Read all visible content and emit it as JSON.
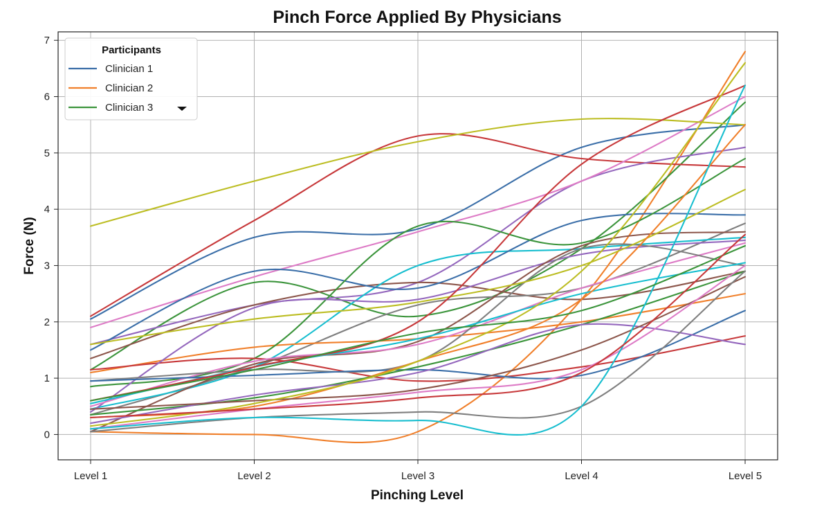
{
  "chart_data": {
    "type": "line",
    "title": "Pinch Force Applied By Physicians",
    "xlabel": "Pinching Level",
    "ylabel": "Force (N)",
    "categories": [
      "Level 1",
      "Level 2",
      "Level 3",
      "Level 4",
      "Level 5"
    ],
    "y_ticks": [
      "0",
      "1",
      "2",
      "3",
      "4",
      "5",
      "6",
      "7"
    ],
    "ylim": [
      -0.45,
      7.15
    ],
    "grid": true,
    "legend": {
      "title": "Participants",
      "placement": "top-left",
      "entries": [
        "Clinician 1",
        "Clinician 2",
        "Clinician 3"
      ],
      "collapsed": true
    },
    "series": [
      {
        "name": "Clinician 1",
        "color": "#3a6ea8",
        "values": [
          2.05,
          3.5,
          3.65,
          5.1,
          5.5
        ]
      },
      {
        "name": "Clinician 2",
        "color": "#f07f2a",
        "values": [
          0.05,
          0.0,
          0.05,
          2.4,
          6.8
        ]
      },
      {
        "name": "Clinician 3",
        "color": "#3b943b",
        "values": [
          1.15,
          2.7,
          2.1,
          3.3,
          5.9
        ]
      },
      {
        "color": "#c7383a",
        "values": [
          2.1,
          3.8,
          5.3,
          4.9,
          4.75
        ]
      },
      {
        "color": "#9467bd",
        "values": [
          1.6,
          2.3,
          2.7,
          4.5,
          5.1
        ]
      },
      {
        "color": "#8c564b",
        "values": [
          1.35,
          2.3,
          2.7,
          2.4,
          2.9
        ]
      },
      {
        "color": "#dd7bc6",
        "values": [
          1.9,
          2.8,
          3.6,
          4.5,
          6.0
        ]
      },
      {
        "color": "#7f7f7f",
        "values": [
          0.35,
          1.2,
          2.3,
          2.6,
          3.75
        ]
      },
      {
        "color": "#bcbd22",
        "values": [
          3.7,
          4.5,
          5.2,
          5.6,
          5.5
        ]
      },
      {
        "color": "#17becf",
        "values": [
          0.45,
          1.2,
          3.0,
          3.3,
          3.5
        ]
      },
      {
        "color": "#3a6ea8",
        "values": [
          1.5,
          2.9,
          2.6,
          3.8,
          3.9
        ]
      },
      {
        "color": "#f07f2a",
        "values": [
          1.1,
          1.55,
          1.7,
          2.0,
          2.5
        ]
      },
      {
        "color": "#3b943b",
        "values": [
          0.85,
          1.35,
          3.7,
          3.4,
          4.9
        ]
      },
      {
        "color": "#c7383a",
        "values": [
          1.15,
          1.35,
          0.95,
          1.2,
          1.75
        ]
      },
      {
        "color": "#9467bd",
        "values": [
          0.4,
          2.25,
          2.4,
          3.2,
          3.45
        ]
      },
      {
        "color": "#8c564b",
        "values": [
          0.05,
          1.25,
          1.65,
          3.35,
          3.6
        ]
      },
      {
        "color": "#dd7bc6",
        "values": [
          0.5,
          1.3,
          1.6,
          2.6,
          3.4
        ]
      },
      {
        "color": "#7f7f7f",
        "values": [
          0.95,
          1.15,
          1.3,
          3.3,
          3.0
        ]
      },
      {
        "color": "#bcbd22",
        "values": [
          1.6,
          2.05,
          2.35,
          3.0,
          4.35
        ]
      },
      {
        "color": "#17becf",
        "values": [
          0.55,
          1.2,
          1.7,
          2.5,
          3.05
        ]
      },
      {
        "color": "#3a6ea8",
        "values": [
          0.95,
          1.05,
          1.15,
          1.05,
          2.2
        ]
      },
      {
        "color": "#f07f2a",
        "values": [
          0.3,
          0.5,
          1.3,
          2.4,
          5.5
        ]
      },
      {
        "color": "#3b943b",
        "values": [
          0.35,
          0.65,
          1.2,
          1.95,
          2.9
        ]
      },
      {
        "color": "#c7383a",
        "values": [
          0.6,
          1.2,
          2.0,
          4.8,
          6.2
        ]
      },
      {
        "color": "#9467bd",
        "values": [
          0.2,
          0.7,
          1.1,
          1.95,
          1.6
        ]
      },
      {
        "color": "#8c564b",
        "values": [
          0.45,
          0.6,
          0.8,
          1.5,
          2.8
        ]
      },
      {
        "color": "#dd7bc6",
        "values": [
          0.1,
          0.45,
          0.75,
          1.15,
          3.0
        ]
      },
      {
        "color": "#7f7f7f",
        "values": [
          0.05,
          0.3,
          0.4,
          0.5,
          2.9
        ]
      },
      {
        "color": "#bcbd22",
        "values": [
          0.15,
          0.55,
          1.3,
          2.9,
          6.6
        ]
      },
      {
        "color": "#17becf",
        "values": [
          0.1,
          0.3,
          0.25,
          0.5,
          6.2
        ]
      },
      {
        "color": "#3b943b",
        "values": [
          0.6,
          1.15,
          1.8,
          2.2,
          3.35
        ]
      },
      {
        "color": "#c7383a",
        "values": [
          0.3,
          0.45,
          0.65,
          1.1,
          3.55
        ]
      }
    ]
  }
}
